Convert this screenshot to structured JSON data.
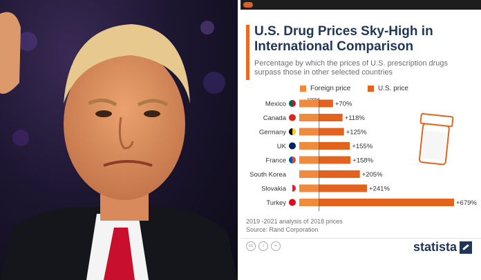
{
  "chart_data": {
    "type": "bar",
    "title": "U.S. Drug Prices Sky-High in International Comparison",
    "subtitle": "Percentage by which the prices of U.S. prescription drugs surpass those in other selected countries",
    "legend": [
      "Foreign price",
      "U.S. price"
    ],
    "baseline_label": "100%",
    "categories": [
      "Mexico",
      "Canada",
      "Germany",
      "UK",
      "France",
      "South Korea",
      "Slovakia",
      "Turkey"
    ],
    "values": [
      70,
      118,
      125,
      155,
      158,
      205,
      241,
      679
    ],
    "value_labels": [
      "+70%",
      "+118%",
      "+125%",
      "+155%",
      "+158%",
      "+205%",
      "+241%",
      "+679%"
    ],
    "flags": [
      "mexico-flag",
      "canada-flag",
      "germany-flag",
      "uk-flag",
      "france-flag",
      "south-korea-flag",
      "slovakia-flag",
      "turkey-flag"
    ],
    "xlim": [
      0,
      779
    ],
    "colors": {
      "foreign": "#f08a3c",
      "us": "#e3621d",
      "title": "#203758"
    }
  },
  "footnotes": {
    "analysis": "2019 -2021 analysis of 2018 prices",
    "source": "Source: Rand Corporation"
  },
  "brand": "statista",
  "photo": {
    "icon": "portrait-photo"
  }
}
